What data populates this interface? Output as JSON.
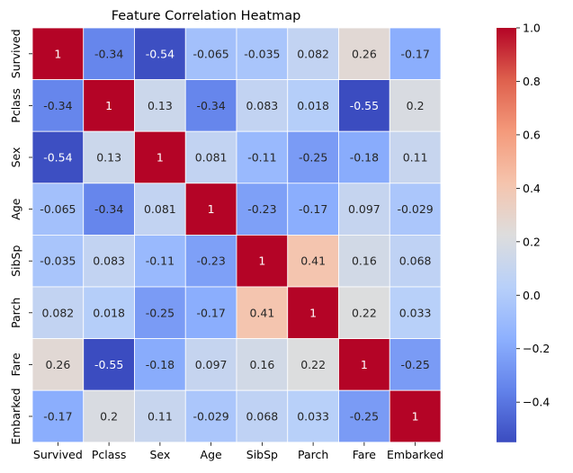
{
  "chart_data": {
    "type": "heatmap",
    "title": "Feature Correlation Heatmap",
    "xlabel": "",
    "ylabel": "",
    "colormap": "coolwarm",
    "annotated": true,
    "grid": false,
    "legend": "colorbar-right",
    "vmin": -0.55,
    "vmax": 1.0,
    "x_categories": [
      "Survived",
      "Pclass",
      "Sex",
      "Age",
      "SibSp",
      "Parch",
      "Fare",
      "Embarked"
    ],
    "y_categories": [
      "Survived",
      "Pclass",
      "Sex",
      "Age",
      "SibSp",
      "Parch",
      "Fare",
      "Embarked"
    ],
    "values": [
      [
        1,
        -0.34,
        -0.54,
        -0.065,
        -0.035,
        0.082,
        0.26,
        -0.17
      ],
      [
        -0.34,
        1,
        0.13,
        -0.34,
        0.083,
        0.018,
        -0.55,
        0.2
      ],
      [
        -0.54,
        0.13,
        1,
        0.081,
        -0.11,
        -0.25,
        -0.18,
        0.11
      ],
      [
        -0.065,
        -0.34,
        0.081,
        1,
        -0.23,
        -0.17,
        0.097,
        -0.029
      ],
      [
        -0.035,
        0.083,
        -0.11,
        -0.23,
        1,
        0.41,
        0.16,
        0.068
      ],
      [
        0.082,
        0.018,
        -0.25,
        -0.17,
        0.41,
        1,
        0.22,
        0.033
      ],
      [
        0.26,
        -0.55,
        -0.18,
        0.097,
        0.16,
        0.22,
        1,
        -0.25
      ],
      [
        -0.17,
        0.2,
        0.11,
        -0.029,
        0.068,
        0.033,
        -0.25,
        1
      ]
    ],
    "value_labels": [
      [
        "1",
        "-0.34",
        "-0.54",
        "-0.065",
        "-0.035",
        "0.082",
        "0.26",
        "-0.17"
      ],
      [
        "-0.34",
        "1",
        "0.13",
        "-0.34",
        "0.083",
        "0.018",
        "-0.55",
        "0.2"
      ],
      [
        "-0.54",
        "0.13",
        "1",
        "0.081",
        "-0.11",
        "-0.25",
        "-0.18",
        "0.11"
      ],
      [
        "-0.065",
        "-0.34",
        "0.081",
        "1",
        "-0.23",
        "-0.17",
        "0.097",
        "-0.029"
      ],
      [
        "-0.035",
        "0.083",
        "-0.11",
        "-0.23",
        "1",
        "0.41",
        "0.16",
        "0.068"
      ],
      [
        "0.082",
        "0.018",
        "-0.25",
        "-0.17",
        "0.41",
        "1",
        "0.22",
        "0.033"
      ],
      [
        "0.26",
        "-0.55",
        "-0.18",
        "0.097",
        "0.16",
        "0.22",
        "1",
        "-0.25"
      ],
      [
        "-0.17",
        "0.2",
        "0.11",
        "-0.029",
        "0.068",
        "0.033",
        "-0.25",
        "1"
      ]
    ],
    "colorbar_ticks": [
      1.0,
      0.8,
      0.6,
      0.4,
      0.2,
      0.0,
      -0.2,
      -0.4
    ],
    "colorbar_tick_labels": [
      "1.0",
      "0.8",
      "0.6",
      "0.4",
      "0.2",
      "0.0",
      "−0.2",
      "−0.4"
    ]
  }
}
